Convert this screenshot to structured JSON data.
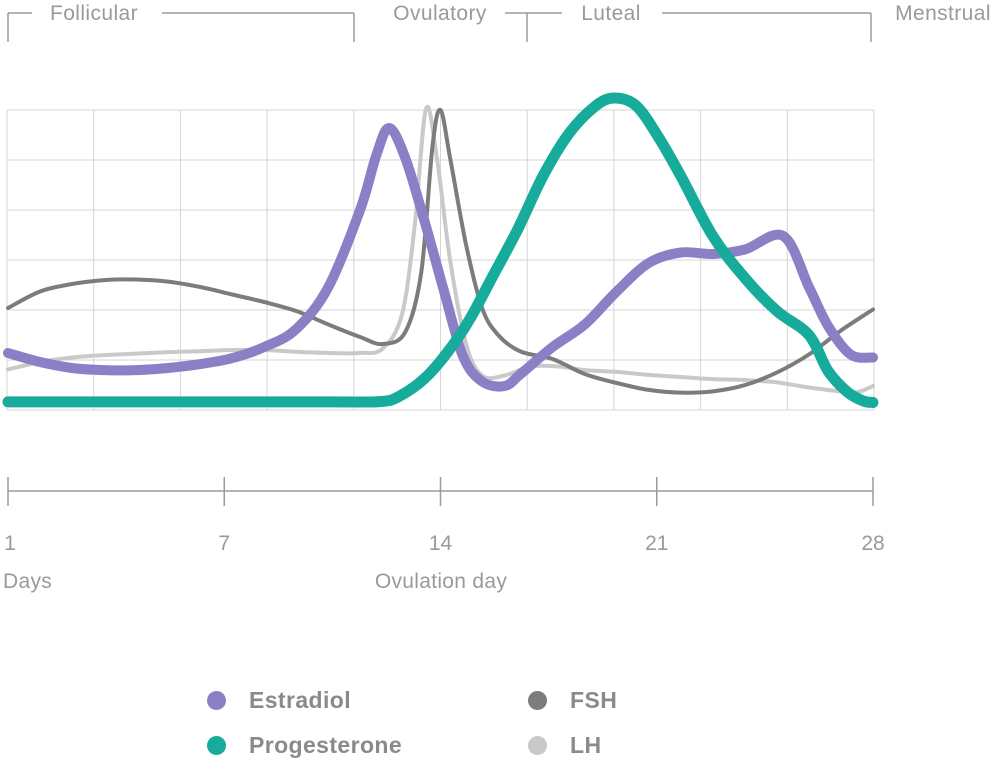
{
  "page": {
    "background": "#ffffff",
    "description": "Menstrual cycle hormone level chart"
  },
  "phases": {
    "labels": [
      {
        "label": "Follicular"
      },
      {
        "label": "Ovulatory"
      },
      {
        "label": "Luteal"
      },
      {
        "label": "Menstrual"
      }
    ]
  },
  "x_axis": {
    "tick_labels": [
      "1",
      "7",
      "14",
      "21",
      "28"
    ],
    "left_caption": "Days",
    "center_caption": "Ovulation day"
  },
  "legend": {
    "items": [
      {
        "label": "Estradiol",
        "color": "#8a80c6"
      },
      {
        "label": "Progesterone",
        "color": "#17ab9b"
      },
      {
        "label": "FSH",
        "color": "#7c7c7c"
      },
      {
        "label": "LH",
        "color": "#c9c9c9"
      }
    ]
  },
  "colors": {
    "grid": "#d5d5d5",
    "axis": "#9b9b9b",
    "label_text": "#9a9a9a",
    "legend_text": "#8a8a8a"
  },
  "chart_data": {
    "type": "line",
    "title": "Menstrual cycle hormone levels by phase",
    "xlabel": "Days",
    "ylabel": "",
    "x_range": [
      1,
      28
    ],
    "x_ticks": [
      1,
      7,
      14,
      21,
      28
    ],
    "ylim_relative": [
      0,
      105
    ],
    "grid": true,
    "y_axis_labels_shown": false,
    "legend_position": "bottom",
    "phase_annotations": [
      {
        "name": "Follicular",
        "day_start": 1,
        "day_end": 11.8
      },
      {
        "name": "Ovulatory",
        "day_start": 11.8,
        "day_end": 17.2
      },
      {
        "name": "Luteal",
        "day_start": 17.2,
        "day_end": 27.9
      },
      {
        "name": "Menstrual",
        "day_start": 27.9,
        "day_end": 28
      }
    ],
    "series": [
      {
        "name": "Estradiol",
        "color": "#8a80c6",
        "points": [
          [
            1,
            19
          ],
          [
            2,
            16
          ],
          [
            3,
            14
          ],
          [
            4,
            13.3
          ],
          [
            5,
            13.3
          ],
          [
            6,
            14
          ],
          [
            7,
            15.3
          ],
          [
            8,
            17.3
          ],
          [
            9,
            21
          ],
          [
            10,
            27
          ],
          [
            11,
            41
          ],
          [
            12,
            67
          ],
          [
            12.5,
            85
          ],
          [
            12.9,
            94
          ],
          [
            13.4,
            84
          ],
          [
            14,
            63
          ],
          [
            14.6,
            40
          ],
          [
            15.2,
            18
          ],
          [
            15.8,
            9.5
          ],
          [
            16.5,
            8
          ],
          [
            17,
            12
          ],
          [
            18,
            21
          ],
          [
            19,
            28.5
          ],
          [
            20,
            39.5
          ],
          [
            21,
            49
          ],
          [
            22,
            52.5
          ],
          [
            23,
            52
          ],
          [
            24,
            53.5
          ],
          [
            25.2,
            58
          ],
          [
            26,
            41
          ],
          [
            26.6,
            28
          ],
          [
            27.3,
            18.5
          ],
          [
            28,
            17.5
          ]
        ]
      },
      {
        "name": "Progesterone",
        "color": "#17ab9b",
        "points": [
          [
            1,
            2.7
          ],
          [
            3,
            2.7
          ],
          [
            5,
            2.7
          ],
          [
            7,
            2.7
          ],
          [
            9,
            2.7
          ],
          [
            11,
            2.7
          ],
          [
            12.6,
            2.8
          ],
          [
            13.2,
            4.5
          ],
          [
            14,
            10.5
          ],
          [
            14.7,
            19
          ],
          [
            15.4,
            30
          ],
          [
            16.1,
            44
          ],
          [
            16.9,
            60
          ],
          [
            17.7,
            78
          ],
          [
            18.5,
            92
          ],
          [
            19.3,
            101
          ],
          [
            19.9,
            104
          ],
          [
            20.6,
            101.5
          ],
          [
            21.3,
            91
          ],
          [
            22,
            78
          ],
          [
            23,
            58
          ],
          [
            24,
            44
          ],
          [
            25,
            33
          ],
          [
            26,
            25
          ],
          [
            26.6,
            13
          ],
          [
            27.2,
            6
          ],
          [
            27.7,
            3
          ],
          [
            28,
            2.5
          ]
        ]
      },
      {
        "name": "FSH",
        "color": "#7c7c7c",
        "points": [
          [
            1,
            34
          ],
          [
            2,
            39.5
          ],
          [
            3,
            42
          ],
          [
            4,
            43.3
          ],
          [
            5,
            43.5
          ],
          [
            6,
            42.8
          ],
          [
            7,
            41
          ],
          [
            8,
            38.5
          ],
          [
            9,
            36
          ],
          [
            10,
            33
          ],
          [
            11,
            28.5
          ],
          [
            12,
            24.3
          ],
          [
            12.7,
            22
          ],
          [
            13.4,
            26
          ],
          [
            13.9,
            46
          ],
          [
            14.25,
            88
          ],
          [
            14.5,
            100
          ],
          [
            14.8,
            84
          ],
          [
            15.3,
            55
          ],
          [
            15.8,
            34
          ],
          [
            16.3,
            25
          ],
          [
            17,
            19.5
          ],
          [
            18,
            17
          ],
          [
            19,
            12
          ],
          [
            20,
            9
          ],
          [
            21,
            6.7
          ],
          [
            22,
            5.8
          ],
          [
            23,
            6.2
          ],
          [
            24,
            8.3
          ],
          [
            25,
            12.5
          ],
          [
            26,
            18.5
          ],
          [
            27,
            26.5
          ],
          [
            28,
            33.5
          ]
        ]
      },
      {
        "name": "LH",
        "color": "#c9c9c9",
        "points": [
          [
            1,
            13.5
          ],
          [
            2,
            16
          ],
          [
            3,
            17.5
          ],
          [
            4,
            18.3
          ],
          [
            5,
            18.8
          ],
          [
            6,
            19.3
          ],
          [
            7,
            19.6
          ],
          [
            8,
            20
          ],
          [
            9,
            20
          ],
          [
            10,
            19.4
          ],
          [
            11,
            19
          ],
          [
            12,
            19
          ],
          [
            12.7,
            20.5
          ],
          [
            13.3,
            32
          ],
          [
            13.7,
            62
          ],
          [
            14.05,
            100.5
          ],
          [
            14.4,
            83
          ],
          [
            14.8,
            50
          ],
          [
            15.3,
            22
          ],
          [
            15.8,
            11.5
          ],
          [
            16.5,
            11.5
          ],
          [
            17.3,
            14.5
          ],
          [
            18.2,
            14.5
          ],
          [
            19,
            13.3
          ],
          [
            20,
            12.7
          ],
          [
            21,
            11.7
          ],
          [
            22,
            11
          ],
          [
            23,
            10.3
          ],
          [
            24,
            10
          ],
          [
            25,
            9.2
          ],
          [
            26,
            7.5
          ],
          [
            27.2,
            6
          ],
          [
            27.6,
            6.2
          ],
          [
            28,
            8
          ]
        ]
      }
    ]
  }
}
